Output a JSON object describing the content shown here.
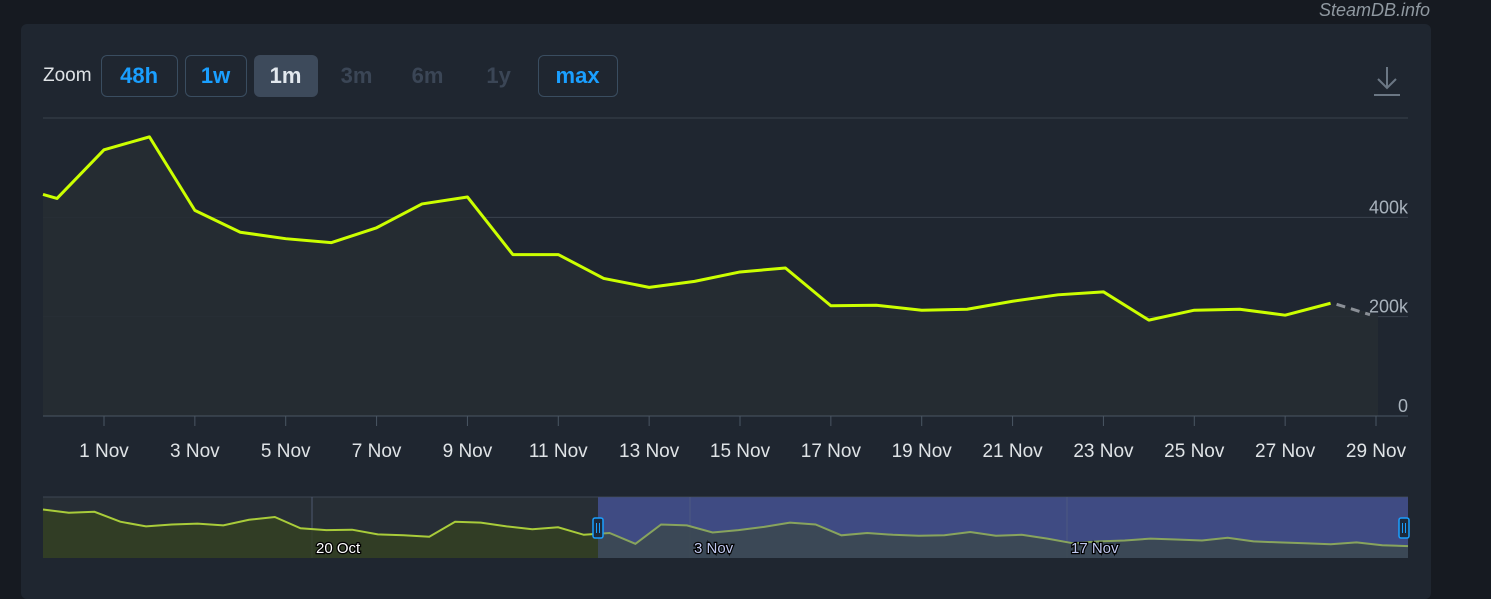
{
  "credit": "SteamDB.info",
  "zoom": {
    "label": "Zoom",
    "buttons": [
      {
        "label": "48h",
        "state": "link"
      },
      {
        "label": "1w",
        "state": "link"
      },
      {
        "label": "1m",
        "state": "current"
      },
      {
        "label": "3m",
        "state": "disabled"
      },
      {
        "label": "6m",
        "state": "disabled"
      },
      {
        "label": "1y",
        "state": "disabled"
      },
      {
        "label": "max",
        "state": "link"
      }
    ]
  },
  "download_icon": "download-icon",
  "colors": {
    "line": "#ccff00",
    "projection": "#8a8f96",
    "navigator_selection": "#3a4474",
    "navigator_unselected": "#343f22",
    "accent": "#1a9fff"
  },
  "chart_data": {
    "type": "line",
    "ylim": [
      0,
      600000
    ],
    "y_ticks": [
      {
        "value": 0,
        "label": "0"
      },
      {
        "value": 200000,
        "label": "200k"
      },
      {
        "value": 400000,
        "label": "400k"
      }
    ],
    "x_ticks": [
      "1 Nov",
      "3 Nov",
      "5 Nov",
      "7 Nov",
      "9 Nov",
      "11 Nov",
      "13 Nov",
      "15 Nov",
      "17 Nov",
      "19 Nov",
      "21 Nov",
      "23 Nov",
      "25 Nov",
      "27 Nov",
      "29 Nov"
    ],
    "x": [
      "31 Oct",
      "31 Oct",
      "1 Nov",
      "2 Nov",
      "3 Nov",
      "4 Nov",
      "5 Nov",
      "6 Nov",
      "7 Nov",
      "8 Nov",
      "9 Nov",
      "10 Nov",
      "11 Nov",
      "12 Nov",
      "13 Nov",
      "14 Nov",
      "15 Nov",
      "16 Nov",
      "17 Nov",
      "18 Nov",
      "19 Nov",
      "20 Nov",
      "21 Nov",
      "22 Nov",
      "23 Nov",
      "24 Nov",
      "25 Nov",
      "26 Nov",
      "27 Nov",
      "28 Nov"
    ],
    "series": [
      {
        "values": [
          446000,
          438000,
          536000,
          562000,
          414000,
          370000,
          357000,
          349000,
          379000,
          427000,
          441000,
          325000,
          325000,
          277000,
          259000,
          271000,
          290000,
          298000,
          222000,
          223000,
          213000,
          215000,
          231000,
          244000,
          250000,
          193000,
          213000,
          215000,
          203000,
          227000
        ]
      }
    ],
    "projection": {
      "x": [
        "28 Nov",
        "29 Nov"
      ],
      "values": [
        227000,
        204000
      ]
    },
    "navigator": {
      "labels": [
        "20 Oct",
        "3 Nov",
        "17 Nov"
      ],
      "values": [
        0.18,
        0.25,
        0.23,
        0.44,
        0.54,
        0.5,
        0.48,
        0.52,
        0.4,
        0.34,
        0.58,
        0.62,
        0.61,
        0.71,
        0.73,
        0.76,
        0.44,
        0.46,
        0.54,
        0.6,
        0.56,
        0.72,
        0.68,
        0.91,
        0.5,
        0.52,
        0.67,
        0.62,
        0.55,
        0.46,
        0.5,
        0.73,
        0.68,
        0.72,
        0.74,
        0.73,
        0.66,
        0.74,
        0.72,
        0.8,
        0.9,
        0.86,
        0.84,
        0.8,
        0.82,
        0.84,
        0.78,
        0.86,
        0.88,
        0.9,
        0.92,
        0.88,
        0.94,
        0.96
      ]
    }
  }
}
